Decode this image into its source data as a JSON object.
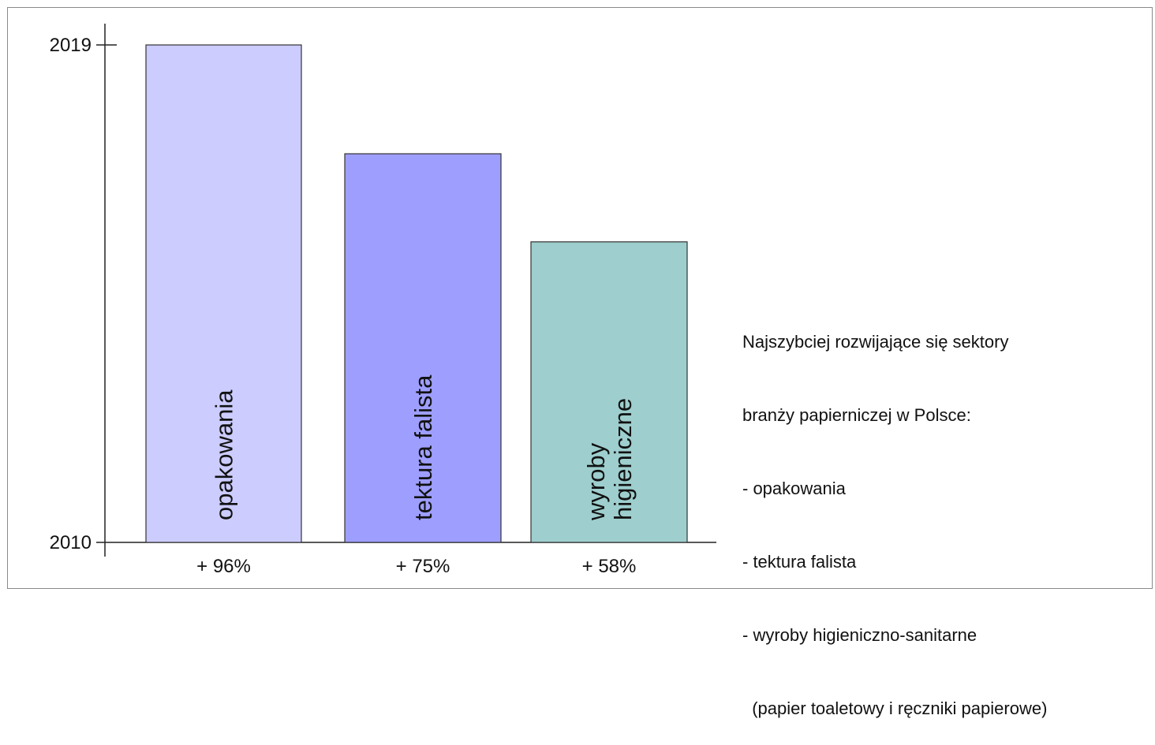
{
  "chart_data": {
    "type": "bar",
    "categories": [
      "opakowania",
      "tektura falista",
      "wyroby higieniczne"
    ],
    "bar_label_lines": [
      [
        "opakowania"
      ],
      [
        "tektura falista"
      ],
      [
        "wyroby",
        "higieniczne"
      ]
    ],
    "values": [
      96,
      75,
      58
    ],
    "value_labels": [
      "+ 96%",
      "+ 75%",
      "+ 58%"
    ],
    "unit": "%",
    "ylim": [
      0,
      96
    ],
    "y_ticks": [
      "2010",
      "2019"
    ],
    "colors": [
      "#ccccff",
      "#9e9eff",
      "#9ecece"
    ],
    "grid": false,
    "legend": "none"
  },
  "note": {
    "lines": [
      "Najszybciej rozwijające się sektory",
      "branży papierniczej w Polsce:",
      "- opakowania",
      "- tektura falista",
      "- wyroby higieniczno-sanitarne",
      "  (papier toaletowy i ręczniki papierowe)"
    ]
  }
}
